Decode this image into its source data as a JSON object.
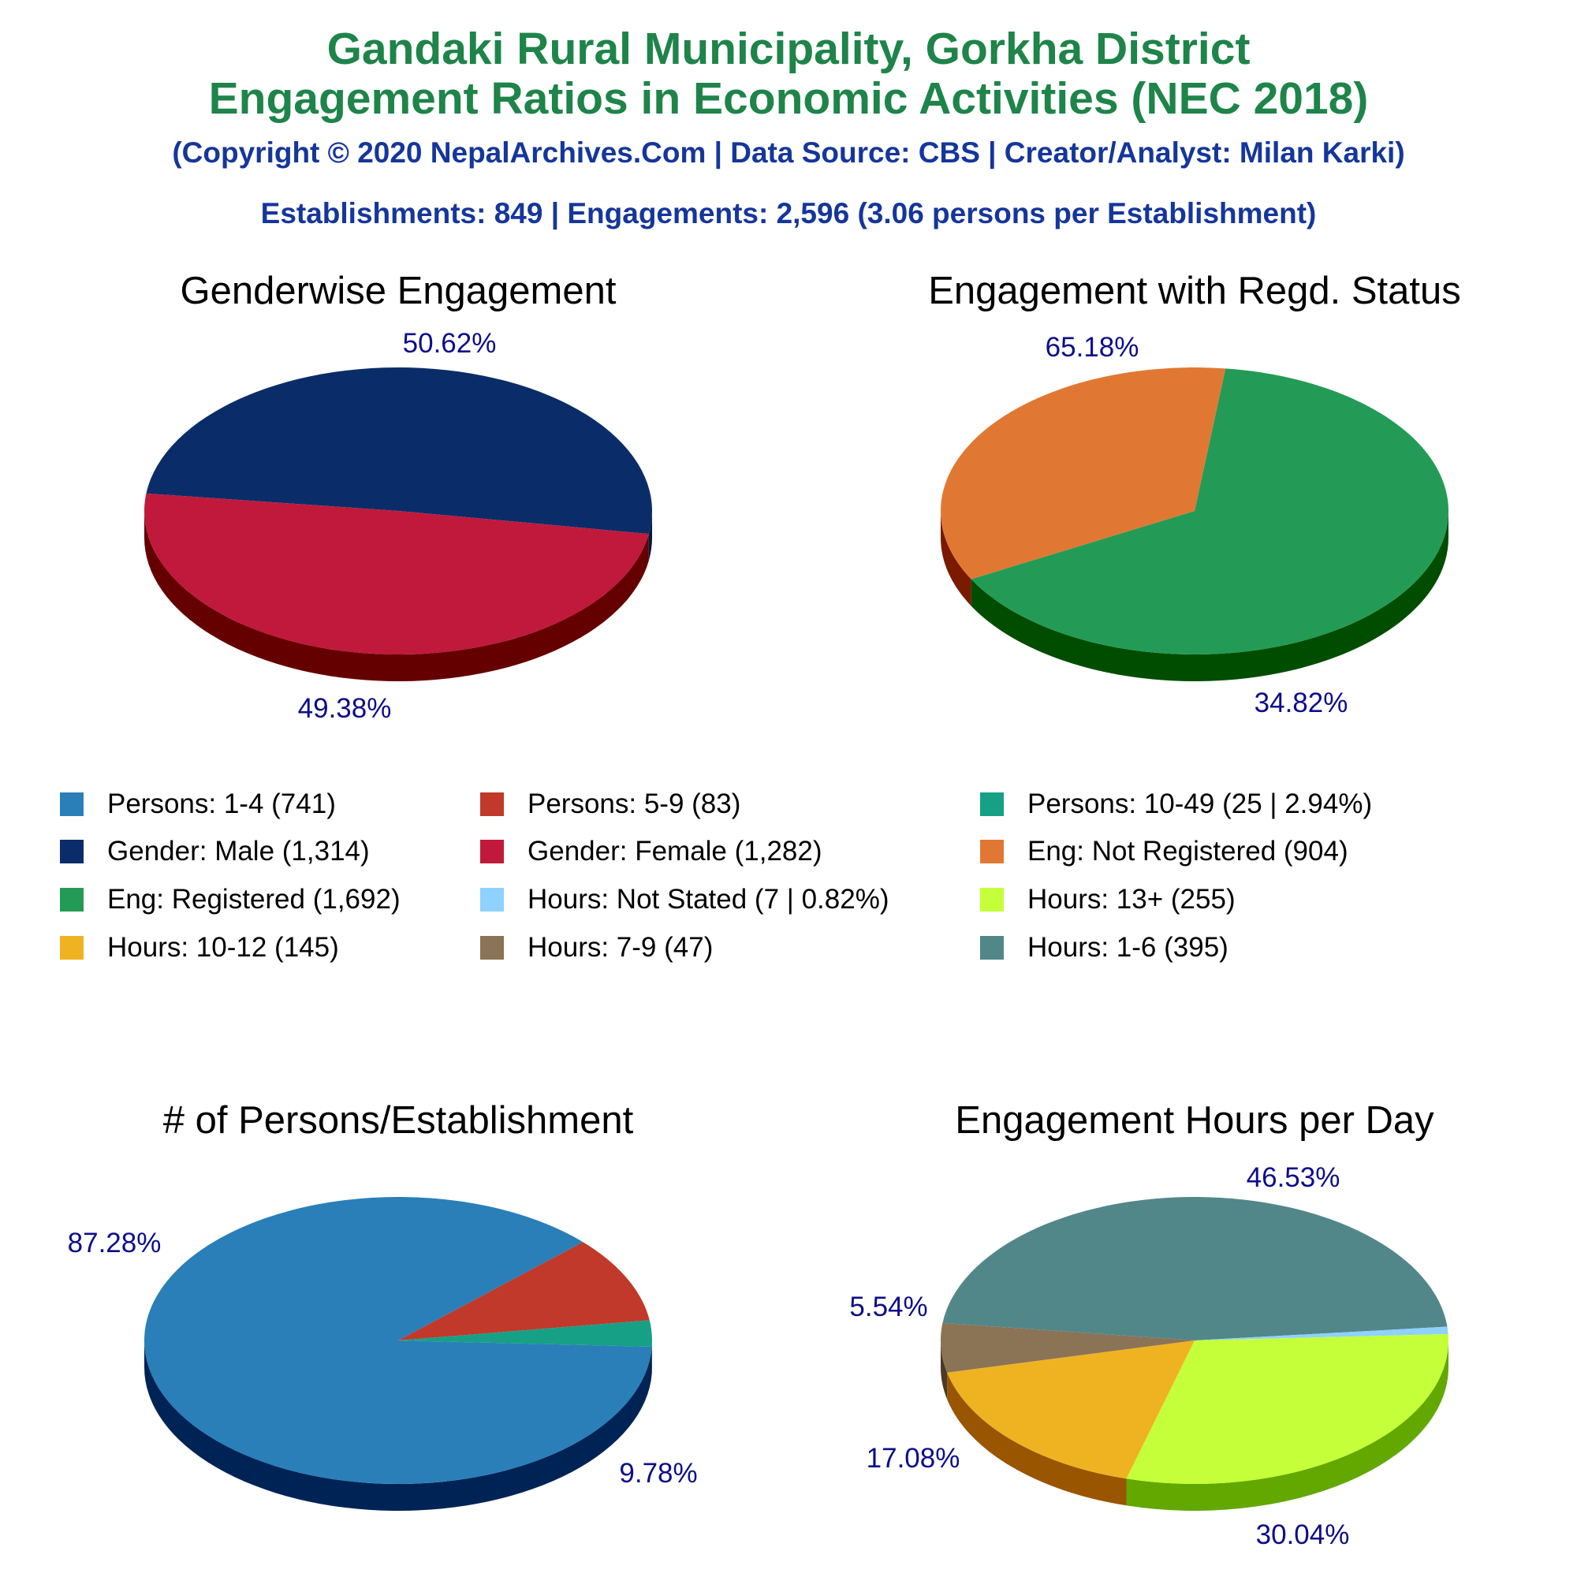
{
  "header": {
    "title_line1": "Gandaki Rural Municipality, Gorkha District",
    "title_line2": "Engagement Ratios in Economic Activities (NEC 2018)",
    "copyright": "(Copyright © 2020 NepalArchives.Com | Data Source: CBS | Creator/Analyst: Milan Karki)",
    "summary": "Establishments: 849 | Engagements: 2,596 (3.06 persons per Establishment)"
  },
  "legend": [
    {
      "label": "Persons: 1-4 (741)",
      "color": "#2a7fb8"
    },
    {
      "label": "Persons: 5-9 (83)",
      "color": "#c0392b"
    },
    {
      "label": "Persons: 10-49 (25 | 2.94%)",
      "color": "#16a085"
    },
    {
      "label": "Gender: Male (1,314)",
      "color": "#0a2d69"
    },
    {
      "label": "Gender: Female (1,282)",
      "color": "#c0193c"
    },
    {
      "label": "Eng: Not Registered (904)",
      "color": "#e07833"
    },
    {
      "label": "Eng: Registered (1,692)",
      "color": "#239b56"
    },
    {
      "label": "Hours: Not Stated (7 | 0.82%)",
      "color": "#8fd1ff"
    },
    {
      "label": "Hours: 13+ (255)",
      "color": "#c4ff3a"
    },
    {
      "label": "Hours: 10-12 (145)",
      "color": "#efb321"
    },
    {
      "label": "Hours: 7-9 (47)",
      "color": "#8b7355"
    },
    {
      "label": "Hours: 1-6 (395)",
      "color": "#52878a"
    }
  ],
  "chart_data": [
    {
      "type": "pie",
      "title": "Genderwise Engagement",
      "categories": [
        "Gender: Male",
        "Gender: Female"
      ],
      "values": [
        1314,
        1282
      ],
      "percent_labels": [
        "50.62%",
        "49.38%"
      ],
      "colors": [
        "#0a2d69",
        "#c0193c"
      ],
      "side_colors": [
        "#041a40",
        "#650000"
      ]
    },
    {
      "type": "pie",
      "title": "Engagement with Regd. Status",
      "categories": [
        "Eng: Registered",
        "Eng: Not Registered"
      ],
      "values": [
        1692,
        904
      ],
      "percent_labels": [
        "65.18%",
        "34.82%"
      ],
      "colors": [
        "#239b56",
        "#e07833"
      ],
      "side_colors": [
        "#004d00",
        "#7a1a00"
      ]
    },
    {
      "type": "pie",
      "title": "# of Persons/Establishment",
      "categories": [
        "Persons: 1-4",
        "Persons: 5-9",
        "Persons: 10-49"
      ],
      "values": [
        741,
        83,
        25
      ],
      "percent_labels": [
        "87.28%",
        "9.78%",
        ""
      ],
      "colors": [
        "#2a7fb8",
        "#c0392b",
        "#16a085"
      ],
      "side_colors": [
        "#002356",
        "#6a0000",
        "#00553b"
      ]
    },
    {
      "type": "pie",
      "title": "Engagement Hours per Day",
      "categories": [
        "Hours: 1-6",
        "Hours: Not Stated",
        "Hours: 13+",
        "Hours: 10-12",
        "Hours: 7-9"
      ],
      "values": [
        395,
        7,
        255,
        145,
        47
      ],
      "percent_labels": [
        "46.53%",
        "",
        "30.04%",
        "17.08%",
        "5.54%"
      ],
      "colors": [
        "#52878a",
        "#8fd1ff",
        "#c4ff3a",
        "#efb321",
        "#8b7355"
      ],
      "side_colors": [
        "#1f4c50",
        "#3f7fbf",
        "#62a800",
        "#995500",
        "#4a3a25"
      ]
    }
  ]
}
